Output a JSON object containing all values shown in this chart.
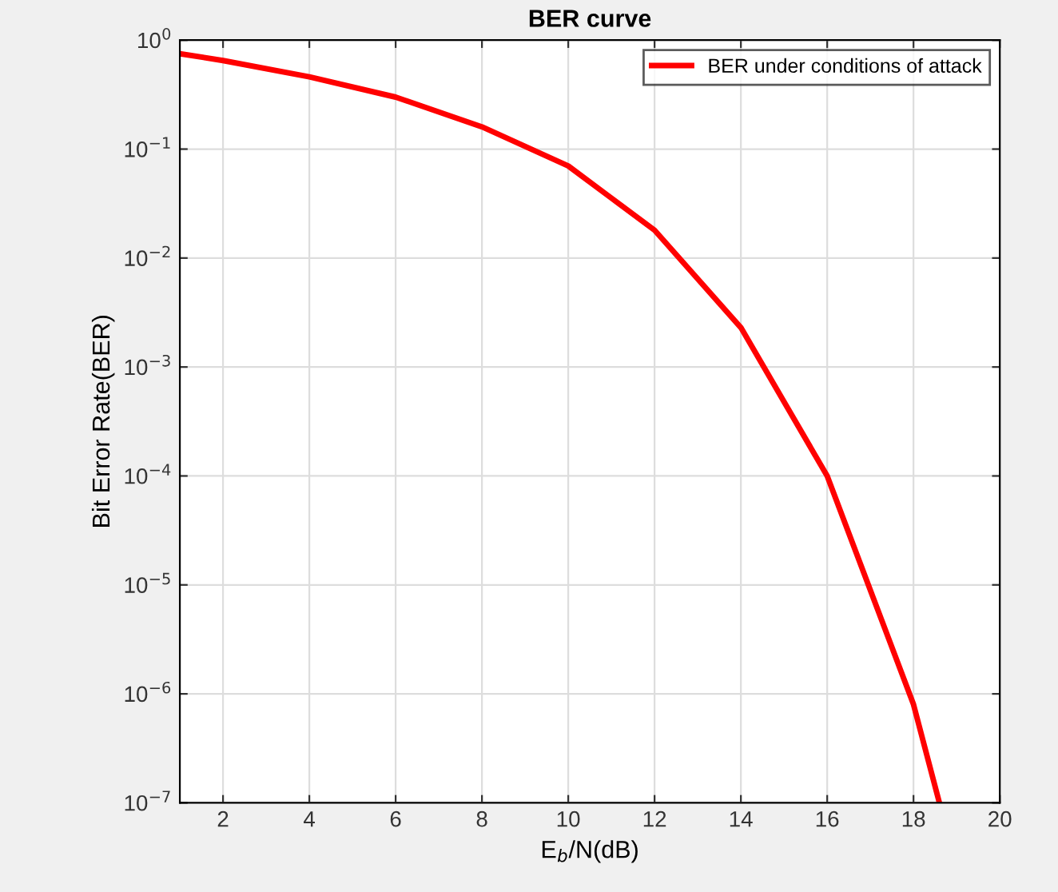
{
  "chart_data": {
    "type": "line",
    "title": "BER curve",
    "xlabel": "E$_{b}$/N(dB)",
    "ylabel": "Bit Error Rate(BER)",
    "x": [
      1,
      2,
      4,
      6,
      8,
      10,
      12,
      14,
      16,
      18,
      18.6
    ],
    "series": [
      {
        "name": "BER under conditions of attack",
        "color": "#ff0000",
        "values": [
          0.75,
          0.65,
          0.46,
          0.3,
          0.16,
          0.07,
          0.018,
          0.0023,
          0.0001,
          8e-07,
          1e-07
        ]
      }
    ],
    "log": "y",
    "xlim": [
      1,
      20
    ],
    "xticks": [
      2,
      4,
      6,
      8,
      10,
      12,
      14,
      16,
      18,
      20
    ],
    "ylim": [
      1e-07,
      1
    ],
    "yticks": [
      {
        "value": 1e-07,
        "label": "10$^{−7}$"
      },
      {
        "value": 1e-06,
        "label": "10$^{−6}$"
      },
      {
        "value": 1e-05,
        "label": "10$^{−5}$"
      },
      {
        "value": 0.0001,
        "label": "10$^{−4}$"
      },
      {
        "value": 0.001,
        "label": "10$^{−3}$"
      },
      {
        "value": 0.01,
        "label": "10$^{−2}$"
      },
      {
        "value": 0.1,
        "label": "10$^{−1}$"
      },
      {
        "value": 1,
        "label": "10$^{0}$"
      }
    ],
    "grid": true,
    "legend": "top right",
    "marker": "none",
    "line_style": "solid"
  }
}
